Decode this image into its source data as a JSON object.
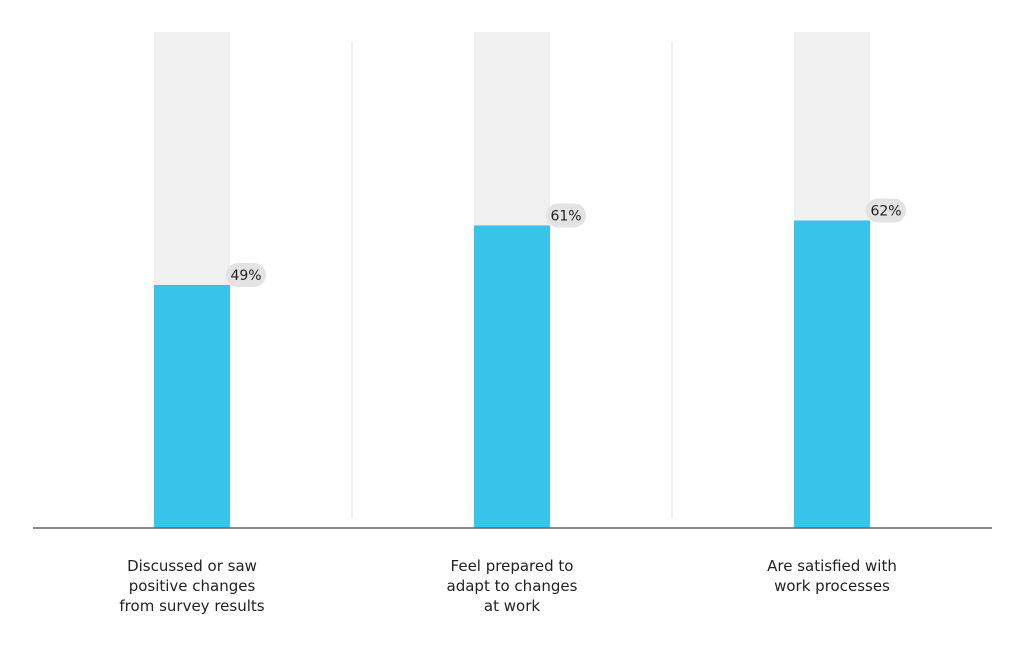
{
  "chart_data": {
    "type": "bar",
    "categories": [
      "Discussed or saw positive changes from survey results",
      "Feel prepared to adapt to changes at work",
      "Are satisfied with work processes"
    ],
    "category_lines": [
      [
        "Discussed or saw",
        "positive changes",
        "from survey results"
      ],
      [
        "Feel prepared to",
        "adapt to changes",
        "at work"
      ],
      [
        "Are satisfied with",
        "work processes"
      ]
    ],
    "values": [
      49,
      61,
      62
    ],
    "value_labels": [
      "49%",
      "61%",
      "62%"
    ],
    "ylim": [
      0,
      100
    ],
    "grid": false,
    "legend": "none",
    "title": "",
    "xlabel": "",
    "ylabel": ""
  },
  "colors": {
    "bar": "#38c3e8",
    "track": "#f0f0f0",
    "baseline": "#666666",
    "divider": "#e6e6e6",
    "pill": "#e3e3e3",
    "text": "#222222"
  }
}
